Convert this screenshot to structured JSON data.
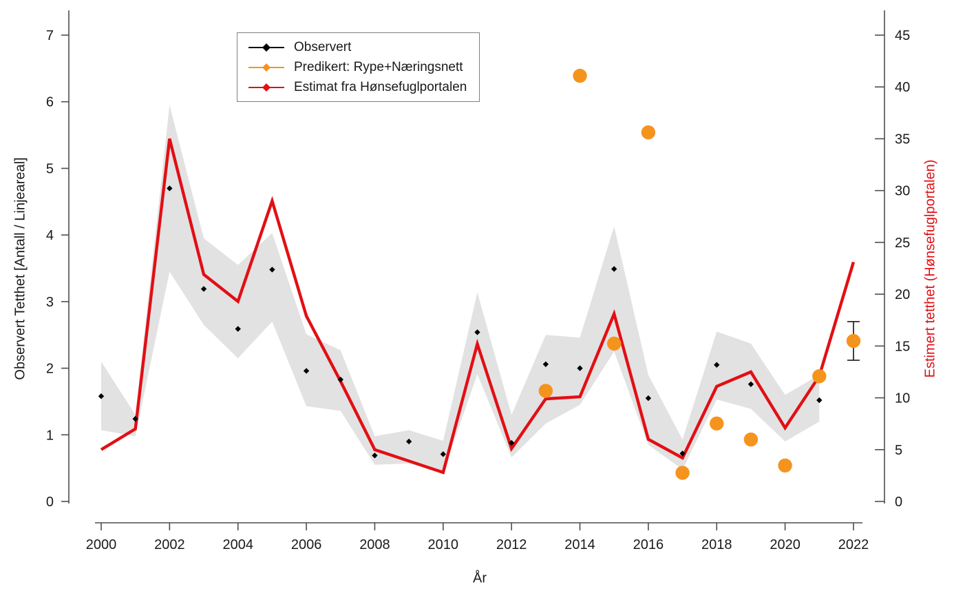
{
  "chart_data": {
    "type": "line",
    "title": "",
    "x": [
      2000,
      2001,
      2002,
      2003,
      2004,
      2005,
      2006,
      2007,
      2008,
      2009,
      2010,
      2011,
      2012,
      2013,
      2014,
      2015,
      2016,
      2017,
      2018,
      2019,
      2020,
      2021,
      2022
    ],
    "series": [
      {
        "name": "Observert",
        "axis": "left",
        "style": "points",
        "marker": "diamond",
        "color": "#000000",
        "values": [
          1.58,
          1.24,
          4.7,
          3.19,
          2.59,
          3.48,
          1.96,
          1.83,
          0.69,
          0.9,
          0.71,
          2.54,
          0.88,
          2.06,
          2.0,
          3.49,
          1.55,
          0.72,
          2.05,
          1.76,
          null,
          1.52,
          null
        ]
      },
      {
        "name": "Predikert: Rype+Næringsnett",
        "axis": "left",
        "style": "points",
        "marker": "circle",
        "color": "#f5941d",
        "values": [
          null,
          null,
          null,
          null,
          null,
          null,
          null,
          null,
          null,
          null,
          null,
          null,
          null,
          1.66,
          6.39,
          2.37,
          5.54,
          0.43,
          1.17,
          0.93,
          0.54,
          1.88,
          2.41
        ],
        "error_bar": {
          "year": 2022,
          "low": 2.12,
          "high": 2.7
        }
      },
      {
        "name": "Estimat fra Hønsefuglportalen",
        "axis": "right",
        "style": "line",
        "marker": "none",
        "color": "#e20f14",
        "values": [
          5.0,
          7.0,
          35.0,
          21.9,
          19.3,
          29.0,
          17.9,
          11.6,
          5.0,
          3.9,
          2.8,
          15.2,
          5.1,
          9.9,
          10.1,
          18.1,
          6.0,
          4.2,
          11.1,
          12.5,
          7.1,
          12.1,
          23.1
        ]
      }
    ],
    "band": {
      "name": "confidence-band",
      "color": "#e2e2e2",
      "years": [
        2000,
        2001,
        2002,
        2003,
        2004,
        2005,
        2006,
        2007,
        2008,
        2009,
        2010,
        2011,
        2012,
        2013,
        2014,
        2015,
        2016,
        2017,
        2018,
        2019,
        2020,
        2021
      ],
      "upper": [
        2.1,
        1.3,
        5.95,
        3.95,
        3.55,
        4.03,
        2.51,
        2.27,
        0.98,
        1.07,
        0.91,
        3.14,
        1.3,
        2.5,
        2.46,
        4.13,
        1.9,
        0.93,
        2.55,
        2.37,
        1.6,
        1.9
      ],
      "lower": [
        1.07,
        0.98,
        3.45,
        2.65,
        2.15,
        2.7,
        1.43,
        1.36,
        0.55,
        0.57,
        0.44,
        1.91,
        0.66,
        1.17,
        1.45,
        2.25,
        0.85,
        0.48,
        1.53,
        1.39,
        0.9,
        1.2
      ]
    },
    "axes": {
      "left": {
        "label": "Observert Tetthet [Antall / Linjeareal]",
        "ticks": [
          0,
          1,
          2,
          3,
          4,
          5,
          6,
          7
        ],
        "range": [
          0,
          7
        ],
        "color": "#1a1a1a"
      },
      "right": {
        "label": "Estimert tetthet (Hønsefuglportalen)",
        "ticks": [
          0,
          5,
          10,
          15,
          20,
          25,
          30,
          35,
          40,
          45
        ],
        "range": [
          0,
          45
        ],
        "color": "#e20f14"
      },
      "x": {
        "label": "År",
        "ticks": [
          2000,
          2002,
          2004,
          2006,
          2008,
          2010,
          2012,
          2014,
          2016,
          2018,
          2020,
          2022
        ],
        "range": [
          2000,
          2022
        ]
      }
    },
    "legend": {
      "position": "top-center",
      "items": [
        "Observert",
        "Predikert: Rype+Næringsnett",
        "Estimat fra Hønsefuglportalen"
      ]
    },
    "grid": false
  }
}
